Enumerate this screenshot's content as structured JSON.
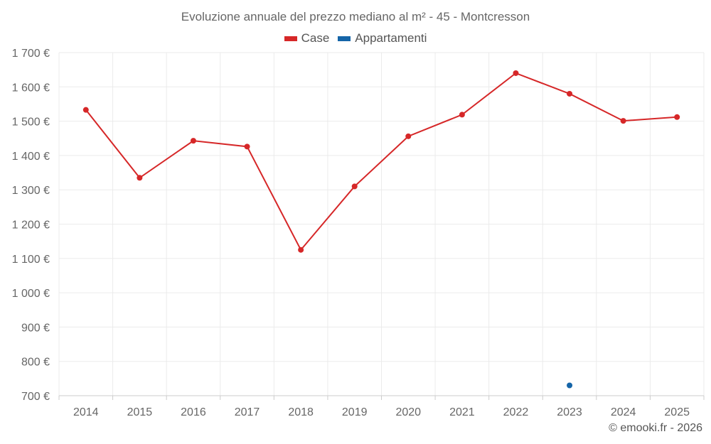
{
  "chart_data": {
    "type": "line",
    "title": "Evoluzione annuale del prezzo mediano al m² - 45 - Montcresson",
    "categories": [
      "2014",
      "2015",
      "2016",
      "2017",
      "2018",
      "2019",
      "2020",
      "2021",
      "2022",
      "2023",
      "2024",
      "2025"
    ],
    "series": [
      {
        "name": "Case",
        "color": "#d62728",
        "values": [
          1533,
          1335,
          1443,
          1426,
          1125,
          1310,
          1456,
          1519,
          1640,
          1580,
          1501,
          1512
        ]
      },
      {
        "name": "Appartamenti",
        "color": "#1565a8",
        "values": [
          null,
          null,
          null,
          null,
          null,
          null,
          null,
          null,
          null,
          730,
          null,
          null
        ]
      }
    ],
    "y_ticks": [
      "1 700 €",
      "1 600 €",
      "1 500 €",
      "1 400 €",
      "1 300 €",
      "1 200 €",
      "1 100 €",
      "1 000 €",
      "900 €",
      "800 €",
      "700 €"
    ],
    "ylim": [
      700,
      1700
    ],
    "grid": true,
    "legend_position": "top-center"
  },
  "credit": "© emooki.fr - 2026"
}
